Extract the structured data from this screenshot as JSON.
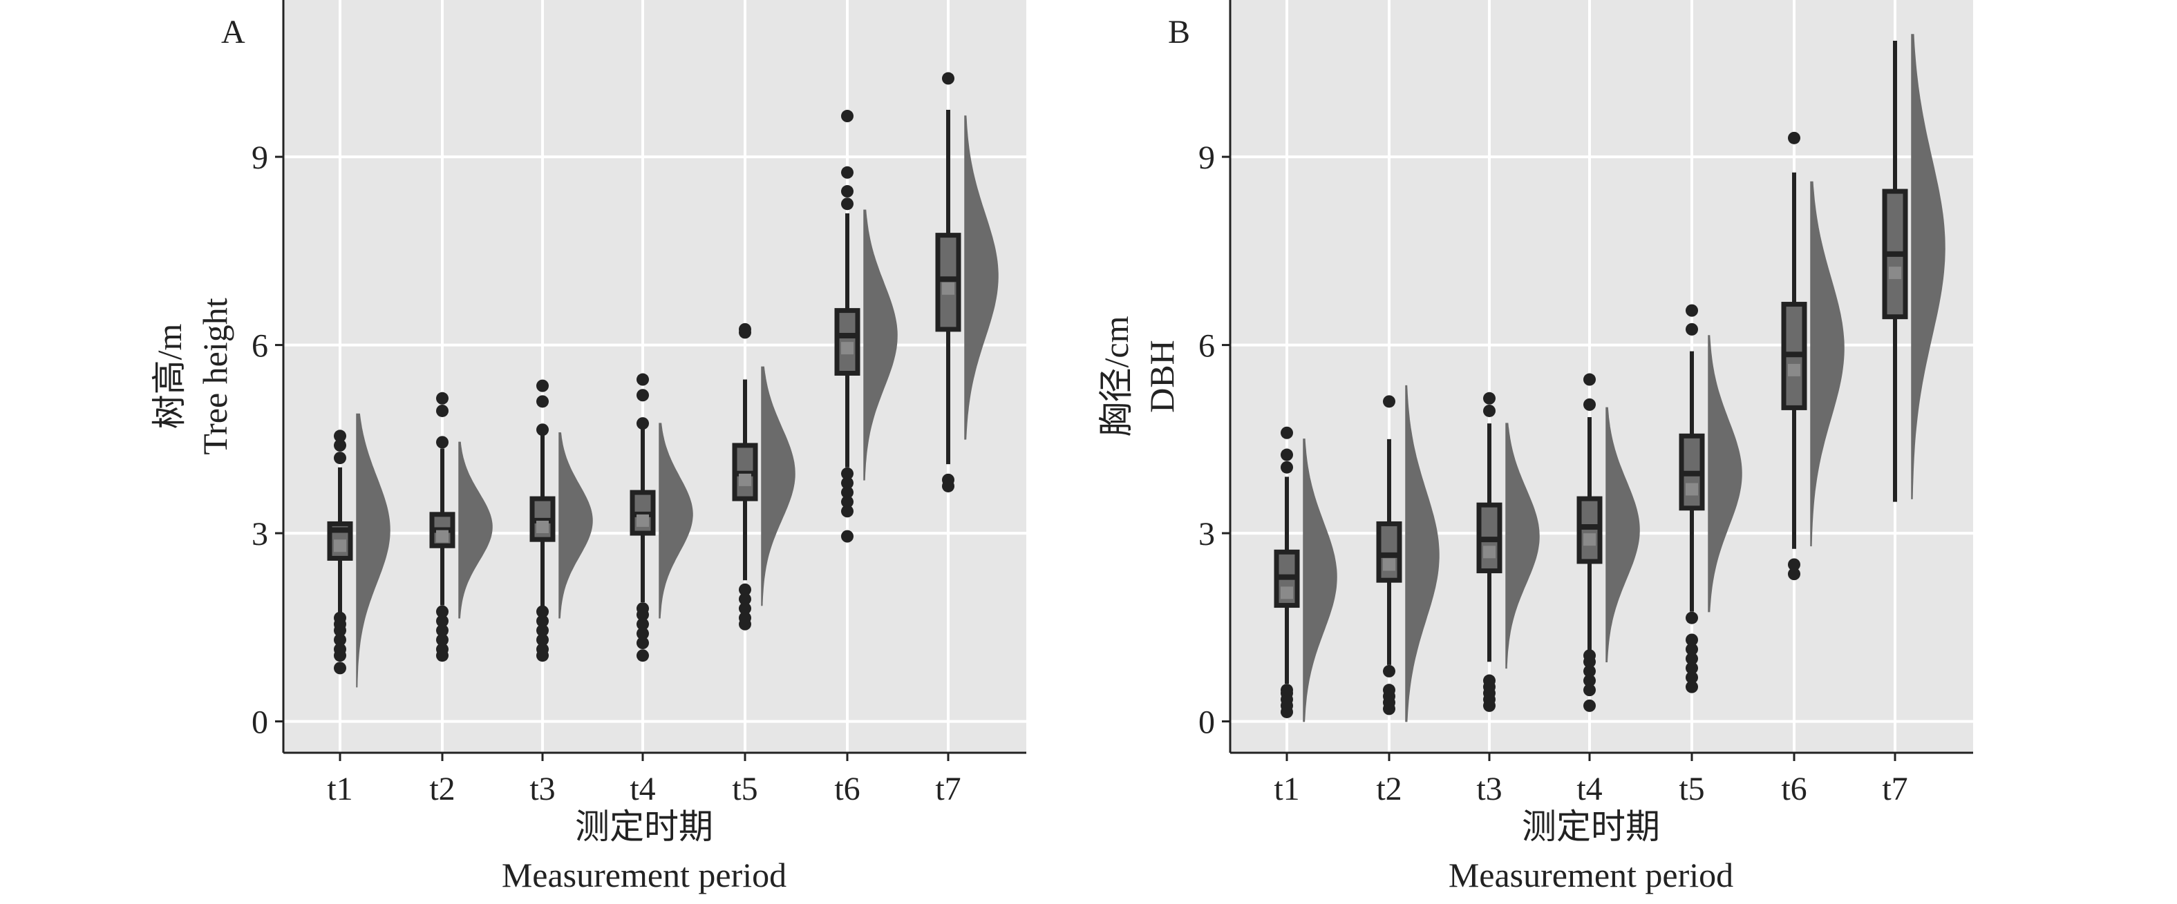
{
  "chart_data": [
    {
      "type": "box-violin",
      "panel_label": "A",
      "ylabel_zh": "树高/m",
      "ylabel_en": "Tree height",
      "xlabel_zh": "测定时期",
      "xlabel_en": "Measurement period",
      "ylim": [
        -0.5,
        11.5
      ],
      "yticks": [
        0,
        3,
        6,
        9
      ],
      "categories": [
        "t1",
        "t2",
        "t3",
        "t4",
        "t5",
        "t6",
        "t7"
      ],
      "boxes": [
        {
          "q1": 2.6,
          "median": 3.05,
          "q3": 3.15,
          "mean": 2.8,
          "whisker_low": 1.7,
          "whisker_high": 4.05,
          "outliers": [
            0.85,
            1.05,
            1.15,
            1.3,
            1.45,
            1.55,
            1.65,
            4.2,
            4.4,
            4.55
          ]
        },
        {
          "q1": 2.8,
          "median": 3.05,
          "q3": 3.3,
          "mean": 2.95,
          "whisker_low": 1.85,
          "whisker_high": 4.35,
          "outliers": [
            1.05,
            1.15,
            1.3,
            1.45,
            1.6,
            1.75,
            4.45,
            4.95,
            5.15
          ]
        },
        {
          "q1": 2.9,
          "median": 3.2,
          "q3": 3.55,
          "mean": 3.1,
          "whisker_low": 1.8,
          "whisker_high": 4.6,
          "outliers": [
            1.05,
            1.15,
            1.3,
            1.45,
            1.6,
            1.75,
            4.65,
            5.1,
            5.35
          ]
        },
        {
          "q1": 3.0,
          "median": 3.3,
          "q3": 3.65,
          "mean": 3.2,
          "whisker_low": 1.9,
          "whisker_high": 4.75,
          "outliers": [
            1.05,
            1.25,
            1.4,
            1.55,
            1.7,
            1.8,
            4.75,
            5.2,
            5.45
          ]
        },
        {
          "q1": 3.55,
          "median": 3.95,
          "q3": 4.4,
          "mean": 3.85,
          "whisker_low": 2.25,
          "whisker_high": 5.45,
          "outliers": [
            1.55,
            1.65,
            1.8,
            1.95,
            2.1,
            6.2,
            6.25
          ]
        },
        {
          "q1": 5.55,
          "median": 6.15,
          "q3": 6.55,
          "mean": 5.95,
          "whisker_low": 4.05,
          "whisker_high": 8.1,
          "outliers": [
            2.95,
            3.35,
            3.5,
            3.65,
            3.8,
            3.95,
            8.25,
            8.45,
            8.75,
            9.65
          ]
        },
        {
          "q1": 6.25,
          "median": 7.05,
          "q3": 7.75,
          "mean": 6.9,
          "whisker_low": 4.1,
          "whisker_high": 9.75,
          "outliers": [
            3.75,
            3.85,
            10.25
          ]
        }
      ],
      "half_violins": [
        {
          "min": 0.55,
          "max": 4.9,
          "peak": 3.05
        },
        {
          "min": 1.65,
          "max": 4.45,
          "peak": 3.1
        },
        {
          "min": 1.65,
          "max": 4.6,
          "peak": 3.2
        },
        {
          "min": 1.65,
          "max": 4.75,
          "peak": 3.3
        },
        {
          "min": 1.85,
          "max": 5.65,
          "peak": 3.95
        },
        {
          "min": 3.85,
          "max": 8.15,
          "peak": 6.15
        },
        {
          "min": 4.5,
          "max": 9.65,
          "peak": 7.1
        }
      ]
    },
    {
      "type": "box-violin",
      "panel_label": "B",
      "ylabel_zh": "胸径/cm",
      "ylabel_en": "DBH",
      "xlabel_zh": "测定时期",
      "xlabel_en": "Measurement period",
      "ylim": [
        -0.5,
        11.5
      ],
      "yticks": [
        0,
        3,
        6,
        9
      ],
      "categories": [
        "t1",
        "t2",
        "t3",
        "t4",
        "t5",
        "t6",
        "t7"
      ],
      "boxes": [
        {
          "q1": 1.85,
          "median": 2.3,
          "q3": 2.7,
          "mean": 2.05,
          "whisker_low": 0.6,
          "whisker_high": 3.9,
          "outliers": [
            0.15,
            0.25,
            0.35,
            0.45,
            0.5,
            4.05,
            4.25,
            4.6
          ]
        },
        {
          "q1": 2.25,
          "median": 2.65,
          "q3": 3.15,
          "mean": 2.5,
          "whisker_low": 0.9,
          "whisker_high": 4.5,
          "outliers": [
            0.2,
            0.3,
            0.4,
            0.5,
            0.8,
            5.1
          ]
        },
        {
          "q1": 2.4,
          "median": 2.9,
          "q3": 3.45,
          "mean": 2.7,
          "whisker_low": 0.95,
          "whisker_high": 4.75,
          "outliers": [
            0.25,
            0.35,
            0.45,
            0.55,
            0.65,
            4.95,
            5.15
          ]
        },
        {
          "q1": 2.55,
          "median": 3.1,
          "q3": 3.55,
          "mean": 2.9,
          "whisker_low": 1.1,
          "whisker_high": 4.85,
          "outliers": [
            0.25,
            0.5,
            0.65,
            0.8,
            0.95,
            1.05,
            5.05,
            5.45
          ]
        },
        {
          "q1": 3.4,
          "median": 3.95,
          "q3": 4.55,
          "mean": 3.7,
          "whisker_low": 1.75,
          "whisker_high": 5.9,
          "outliers": [
            0.55,
            0.7,
            0.85,
            1.0,
            1.15,
            1.3,
            1.65,
            6.25,
            6.55
          ]
        },
        {
          "q1": 5.0,
          "median": 5.85,
          "q3": 6.65,
          "mean": 5.6,
          "whisker_low": 2.75,
          "whisker_high": 8.75,
          "outliers": [
            2.35,
            2.5,
            9.3
          ]
        },
        {
          "q1": 6.45,
          "median": 7.45,
          "q3": 8.45,
          "mean": 7.15,
          "whisker_low": 3.5,
          "whisker_high": 10.85,
          "outliers": []
        }
      ],
      "half_violins": [
        {
          "min": 0.0,
          "max": 4.5,
          "peak": 2.3
        },
        {
          "min": 0.0,
          "max": 5.35,
          "peak": 2.65
        },
        {
          "min": 0.85,
          "max": 4.75,
          "peak": 2.95
        },
        {
          "min": 0.95,
          "max": 5.0,
          "peak": 3.05
        },
        {
          "min": 1.75,
          "max": 6.15,
          "peak": 3.95
        },
        {
          "min": 2.8,
          "max": 8.6,
          "peak": 5.95
        },
        {
          "min": 3.55,
          "max": 10.95,
          "peak": 7.55
        }
      ]
    }
  ]
}
